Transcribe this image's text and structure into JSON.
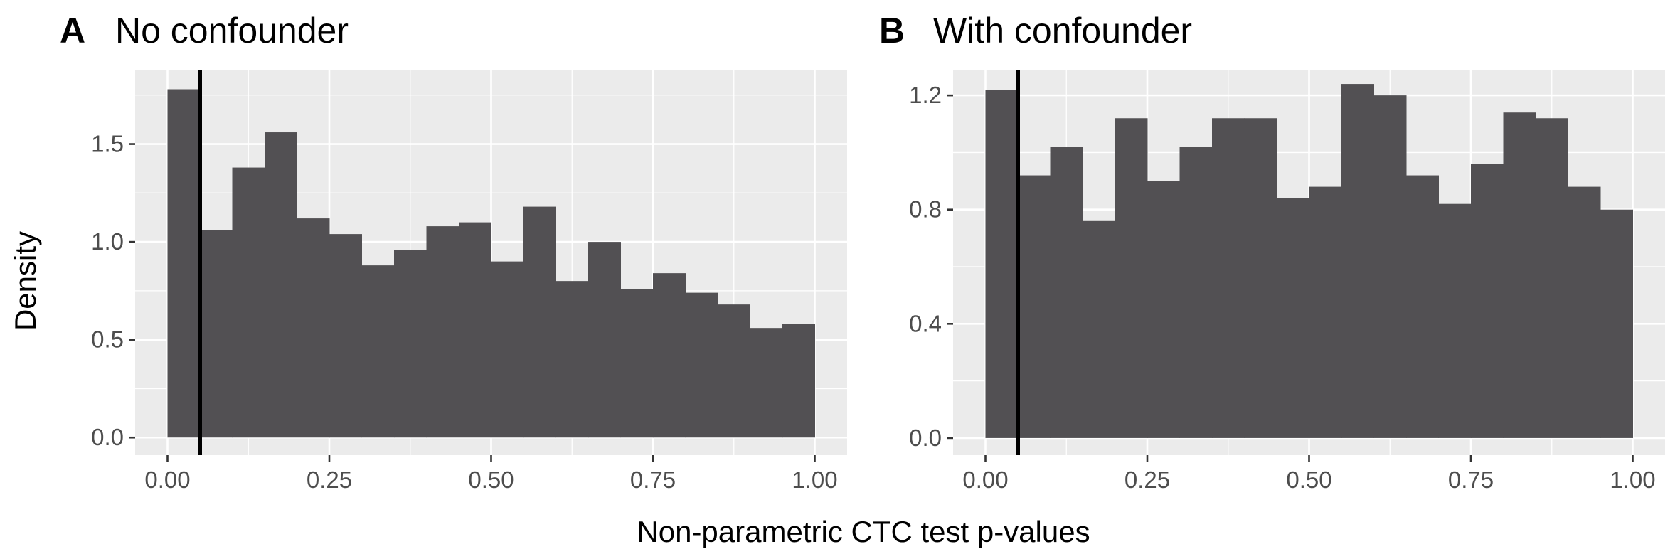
{
  "shared": {
    "ylabel": "Density",
    "xlabel": "Non-parametric CTC test p-values",
    "x_ticks": [
      "0.00",
      "0.25",
      "0.50",
      "0.75",
      "1.00"
    ],
    "x_tick_values": [
      0,
      0.25,
      0.5,
      0.75,
      1.0
    ],
    "bar_color": "#525053",
    "panel_bg": "#ebebeb",
    "grid_color": "#ffffff",
    "vline_color": "#000000"
  },
  "chart_data": [
    {
      "type": "bar",
      "tag": "A",
      "title": "No confounder",
      "bin_width": 0.05,
      "bin_start": 0,
      "values": [
        1.78,
        1.06,
        1.38,
        1.56,
        1.12,
        1.04,
        0.88,
        0.96,
        1.08,
        1.1,
        0.9,
        1.18,
        0.8,
        1.0,
        0.76,
        0.84,
        0.74,
        0.68,
        0.56,
        0.58
      ],
      "xlim": [
        -0.05,
        1.05
      ],
      "ylim": [
        -0.09,
        1.88
      ],
      "y_ticks": [
        "0.0",
        "0.5",
        "1.0",
        "1.5"
      ],
      "y_tick_values": [
        0,
        0.5,
        1.0,
        1.5
      ],
      "vline_x": 0.05,
      "grid": true
    },
    {
      "type": "bar",
      "tag": "B",
      "title": "With confounder",
      "bin_width": 0.05,
      "bin_start": 0,
      "values": [
        1.22,
        0.92,
        1.02,
        0.76,
        1.12,
        0.9,
        1.02,
        1.12,
        1.12,
        0.84,
        0.88,
        1.24,
        1.2,
        0.92,
        0.82,
        0.96,
        1.14,
        1.12,
        0.88,
        0.8
      ],
      "xlim": [
        -0.05,
        1.05
      ],
      "ylim": [
        -0.06,
        1.29
      ],
      "y_ticks": [
        "0.0",
        "0.4",
        "0.8",
        "1.2"
      ],
      "y_tick_values": [
        0,
        0.4,
        0.8,
        1.2
      ],
      "vline_x": 0.05,
      "grid": true
    }
  ]
}
